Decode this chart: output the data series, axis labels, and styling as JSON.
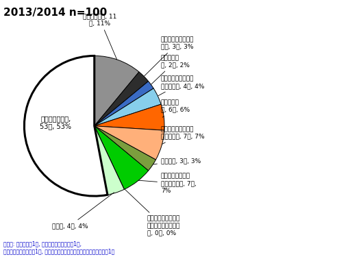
{
  "title": "2013/2014 n=100",
  "slice_values": [
    11,
    3,
    2,
    4,
    6,
    7,
    3,
    7,
    0,
    4,
    53
  ],
  "slice_colors": [
    "#909090",
    "#2d2d2d",
    "#3a6bc4",
    "#87ceeb",
    "#ff6600",
    "#ffb07a",
    "#7b9e3e",
    "#00cc00",
    "#ffffff",
    "#ccffcc",
    "#ffffff"
  ],
  "footnote": "その他: ラピアクタ1件, タミフル＋ラピアクタ1件,\nリレンザ＋ラピアクタ1件, タミフル＋アセトアミノフェン＋ラピアクタ1件",
  "background_color": "#ffffff",
  "label_0": "全て服用なし, 11\n件, 11%",
  "label_1": "アセトアミノフェン\nのみ, 3件, 3%",
  "label_2": "リレンザの\nみ, 2件, 2%",
  "label_3": "リレンザ＋アセトア\nミノフェン, 4件, 4%",
  "label_4": "タミフルの\nみ, 6件, 6%",
  "label_5": "タミフル＋アセトア\nミノフェン, 7件, 7%",
  "label_6": "イナビル, 3件, 3%",
  "label_7": "イナビル＋アセト\nアミノフェン, 7件,\n7%",
  "label_8": "タミフル＋イナビル\n＋アセトアミノフェ\nン, 0件, 0%",
  "label_9": "その他, 4件, 4%",
  "label_10": "いずれかが不明,\n53件, 53%"
}
